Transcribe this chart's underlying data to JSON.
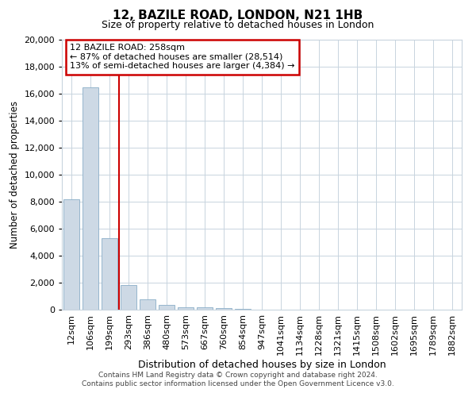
{
  "title": "12, BAZILE ROAD, LONDON, N21 1HB",
  "subtitle": "Size of property relative to detached houses in London",
  "xlabel": "Distribution of detached houses by size in London",
  "ylabel": "Number of detached properties",
  "categories": [
    "12sqm",
    "106sqm",
    "199sqm",
    "293sqm",
    "386sqm",
    "480sqm",
    "573sqm",
    "667sqm",
    "760sqm",
    "854sqm",
    "947sqm",
    "1041sqm",
    "1134sqm",
    "1228sqm",
    "1321sqm",
    "1415sqm",
    "1508sqm",
    "1602sqm",
    "1695sqm",
    "1789sqm",
    "1882sqm"
  ],
  "values": [
    8200,
    16500,
    5300,
    1800,
    750,
    350,
    200,
    200,
    100,
    50,
    0,
    0,
    0,
    0,
    0,
    0,
    0,
    0,
    0,
    0,
    0
  ],
  "bar_color": "#cdd9e5",
  "bar_edge_color": "#8aaec8",
  "red_line_x": 2.5,
  "annotation_text": "12 BAZILE ROAD: 258sqm\n← 87% of detached houses are smaller (28,514)\n13% of semi-detached houses are larger (4,384) →",
  "annotation_box_color": "#ffffff",
  "annotation_box_edge_color": "#cc0000",
  "red_line_color": "#cc0000",
  "ylim": [
    0,
    20000
  ],
  "yticks": [
    0,
    2000,
    4000,
    6000,
    8000,
    10000,
    12000,
    14000,
    16000,
    18000,
    20000
  ],
  "footer_line1": "Contains HM Land Registry data © Crown copyright and database right 2024.",
  "footer_line2": "Contains public sector information licensed under the Open Government Licence v3.0.",
  "background_color": "#ffffff",
  "grid_color": "#c8d4de"
}
